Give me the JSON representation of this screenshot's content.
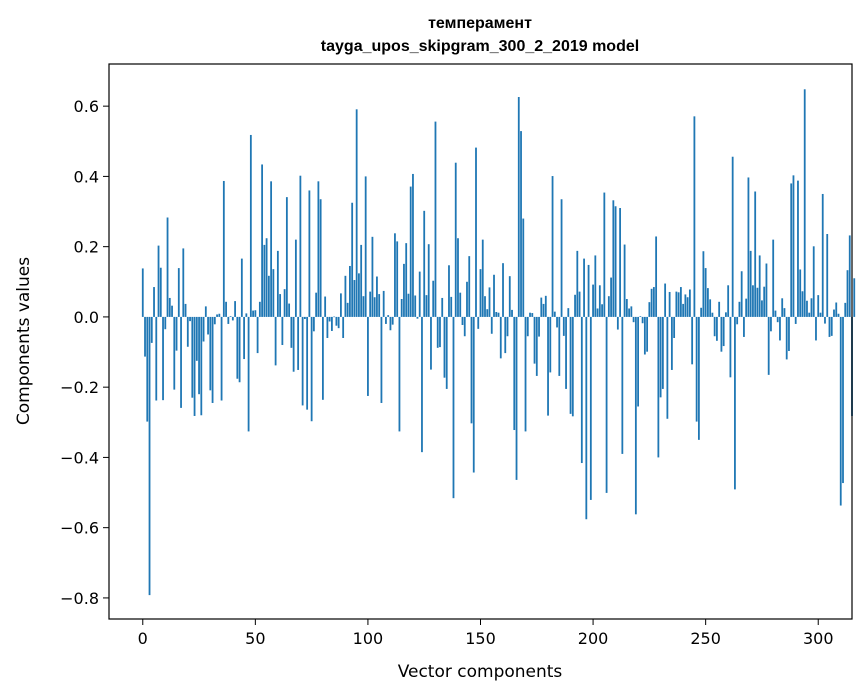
{
  "chart_data": {
    "type": "bar",
    "title": "темперамент",
    "subtitle": "tayga_upos_skipgram_300_2_2019 model",
    "xlabel": "Vector components",
    "ylabel": "Components values",
    "xlim": [
      -15,
      315
    ],
    "ylim": [
      -0.86,
      0.72
    ],
    "xticks": [
      0,
      50,
      100,
      150,
      200,
      250,
      300
    ],
    "xtick_labels": [
      "0",
      "50",
      "100",
      "150",
      "200",
      "250",
      "300"
    ],
    "yticks": [
      -0.8,
      -0.6,
      -0.4,
      -0.2,
      0.0,
      0.2,
      0.4,
      0.6
    ],
    "ytick_labels": [
      "−0.8",
      "−0.6",
      "−0.4",
      "−0.2",
      "0.0",
      "0.2",
      "0.4",
      "0.6"
    ],
    "bar_color": "#1f77b4",
    "values": [
      0.138,
      -0.113,
      -0.298,
      -0.792,
      -0.074,
      0.085,
      -0.238,
      0.203,
      0.14,
      -0.237,
      -0.035,
      0.283,
      0.054,
      0.032,
      -0.207,
      -0.096,
      0.139,
      -0.259,
      0.195,
      0.037,
      -0.085,
      -0.012,
      -0.23,
      -0.282,
      -0.125,
      -0.22,
      -0.28,
      -0.07,
      0.03,
      -0.05,
      -0.209,
      -0.245,
      -0.021,
      0.007,
      0.009,
      -0.238,
      0.387,
      0.043,
      -0.02,
      0.002,
      -0.01,
      0.045,
      -0.176,
      -0.186,
      0.166,
      -0.12,
      0.01,
      -0.326,
      0.518,
      0.018,
      0.019,
      -0.103,
      0.043,
      0.434,
      0.205,
      0.224,
      0.117,
      0.386,
      0.136,
      -0.138,
      0.188,
      0.065,
      -0.08,
      0.079,
      0.341,
      0.038,
      -0.088,
      -0.156,
      0.22,
      -0.151,
      0.402,
      -0.252,
      -0.006,
      -0.264,
      0.36,
      -0.297,
      -0.041,
      0.069,
      0.386,
      0.335,
      -0.236,
      0.058,
      -0.06,
      -0.013,
      -0.04,
      0.001,
      -0.025,
      -0.032,
      0.067,
      -0.06,
      0.117,
      0.04,
      0.145,
      0.325,
      0.105,
      0.591,
      0.124,
      0.205,
      0.059,
      0.4,
      -0.225,
      0.072,
      0.228,
      0.056,
      0.115,
      0.065,
      -0.245,
      0.074,
      -0.02,
      0.005,
      -0.038,
      -0.022,
      0.238,
      0.215,
      -0.326,
      0.051,
      0.151,
      0.21,
      0.066,
      0.371,
      0.407,
      0.061,
      -0.005,
      0.129,
      -0.385,
      0.302,
      0.062,
      0.207,
      -0.15,
      0.103,
      0.556,
      -0.088,
      -0.086,
      0.054,
      -0.173,
      -0.205,
      0.147,
      0.057,
      -0.516,
      0.439,
      0.224,
      0.069,
      -0.023,
      -0.055,
      0.1,
      0.173,
      -0.303,
      -0.443,
      0.482,
      -0.034,
      0.136,
      0.22,
      0.059,
      0.022,
      0.084,
      -0.048,
      0.12,
      0.014,
      0.012,
      -0.118,
      0.153,
      -0.103,
      -0.055,
      0.116,
      0.02,
      -0.322,
      -0.464,
      0.626,
      0.529,
      0.28,
      -0.326,
      -0.055,
      0.012,
      0.011,
      -0.133,
      -0.168,
      -0.056,
      0.055,
      0.037,
      0.06,
      -0.281,
      -0.158,
      0.401,
      0.015,
      -0.03,
      -0.168,
      0.335,
      -0.054,
      -0.205,
      0.025,
      -0.276,
      -0.283,
      0.063,
      0.188,
      0.072,
      -0.416,
      0.166,
      -0.576,
      0.148,
      -0.521,
      0.092,
      0.175,
      0.024,
      0.09,
      0.036,
      0.354,
      -0.501,
      0.059,
      0.112,
      0.332,
      0.315,
      -0.036,
      0.31,
      -0.39,
      0.206,
      0.051,
      0.024,
      0.03,
      -0.015,
      -0.562,
      -0.255,
      0.002,
      -0.018,
      -0.107,
      -0.099,
      0.042,
      0.08,
      0.085,
      0.229,
      -0.4,
      -0.229,
      -0.205,
      0.095,
      -0.29,
      0.071,
      -0.151,
      -0.06,
      0.072,
      0.07,
      0.085,
      0.037,
      0.064,
      0.056,
      0.078,
      -0.135,
      0.571,
      -0.298,
      -0.35,
      0.026,
      0.187,
      0.139,
      0.082,
      0.05,
      0.012,
      -0.055,
      -0.068,
      0.043,
      -0.099,
      -0.083,
      0.013,
      0.09,
      -0.172,
      0.456,
      -0.491,
      -0.021,
      0.043,
      0.13,
      -0.057,
      0.052,
      0.397,
      0.188,
      0.09,
      0.357,
      0.083,
      0.175,
      0.047,
      0.086,
      0.152,
      -0.165,
      -0.041,
      0.22,
      0.018,
      -0.015,
      -0.067,
      0.053,
      0.025,
      -0.121,
      -0.097,
      0.38,
      0.403,
      -0.02,
      0.388,
      0.135,
      0.073,
      0.648,
      0.046,
      0.012,
      0.053,
      0.201,
      -0.067,
      0.062,
      0.012,
      0.35,
      -0.019,
      0.236,
      -0.057,
      -0.054,
      0.021,
      0.041,
      0.009,
      -0.537,
      -0.473,
      0.04,
      0.133,
      0.232,
      -0.282,
      0.11
    ]
  }
}
